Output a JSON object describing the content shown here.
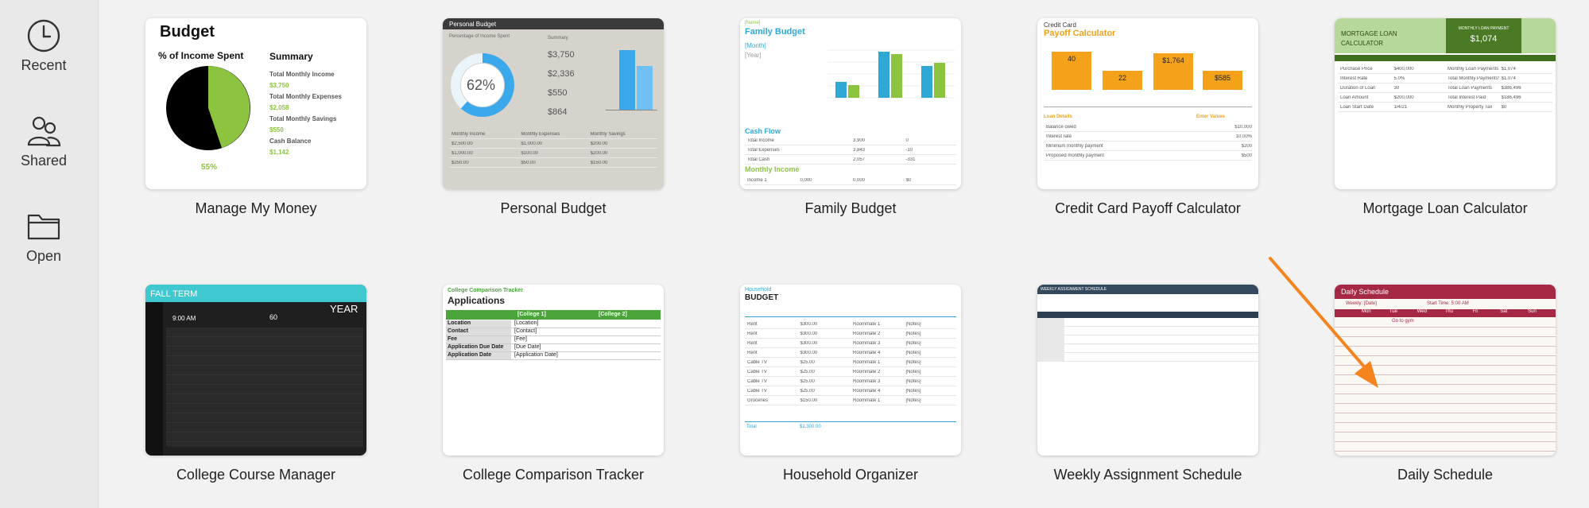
{
  "sidebar": {
    "items": [
      {
        "label": "Recent",
        "icon": "clock-icon"
      },
      {
        "label": "Shared",
        "icon": "people-icon"
      },
      {
        "label": "Open",
        "icon": "folder-icon"
      }
    ]
  },
  "templates": [
    {
      "label": "Manage My Money"
    },
    {
      "label": "Personal Budget"
    },
    {
      "label": "Family Budget"
    },
    {
      "label": "Credit Card Payoff Calculator"
    },
    {
      "label": "Mortgage Loan Calculator"
    },
    {
      "label": "College Course Manager"
    },
    {
      "label": "College Comparison Tracker"
    },
    {
      "label": "Household Organizer"
    },
    {
      "label": "Weekly Assignment Schedule"
    },
    {
      "label": "Daily Schedule"
    }
  ],
  "thumbs": {
    "mmm": {
      "title": "Budget",
      "pie_title": "% of Income Spent",
      "pct": "55%",
      "summary": "Summary",
      "rows": [
        [
          "Total Monthly Income",
          "$3,750"
        ],
        [
          "Total Monthly Expenses",
          "$2,058"
        ],
        [
          "Total Monthly Savings",
          "$550"
        ],
        [
          "Cash Balance",
          "$1,142"
        ]
      ]
    },
    "pb": {
      "title": "Personal Budget",
      "pct": "62%",
      "sub": "Percentage of Income Spent",
      "summary": "Summary",
      "amounts": [
        "$3,750",
        "$2,336",
        "$550",
        "$864"
      ]
    },
    "fb": {
      "name": "[Name]",
      "title": "Family Budget",
      "month": "[Month]",
      "year": "[Year]",
      "cashflow": "Cash Flow",
      "income": "Monthly Income"
    },
    "cc": {
      "kicker": "Credit Card",
      "title": "Payoff Calculator",
      "bars": [
        "40",
        "22",
        "$1,764",
        "$585"
      ],
      "loan": "Loan Details",
      "enter": "Enter Values"
    },
    "ml": {
      "title": "MORTGAGE LOAN CALCULATOR",
      "payment_label": "MONTHLY LOAN PAYMENT",
      "payment": "$1,074"
    },
    "ccm": {
      "term": "FALL TERM",
      "year": "YEAR",
      "time": "9:00 AM",
      "interval": "60"
    },
    "cct": {
      "kicker": "College Comparison Tracker",
      "title": "Applications",
      "c1": "[College 1]",
      "c2": "[College 2]",
      "rows": [
        "Location",
        "Contact",
        "Fee",
        "Application Due Date",
        "Application Date"
      ],
      "vals": [
        "[Location]",
        "[Contact]",
        "[Fee]",
        "[Due Date]",
        "[Application Date]"
      ]
    },
    "ho": {
      "kicker": "Household",
      "title": "BUDGET",
      "total": "Total",
      "total_amt": "$1,300.00"
    },
    "was": {
      "title": "WEEKLY ASSIGNMENT SCHEDULE"
    },
    "ds": {
      "title": "Daily Schedule",
      "weekly": "Weekly: [Date]",
      "start": "Start Time: 5:00 AM",
      "days": [
        "Mon",
        "Tue",
        "Wed",
        "Thu",
        "Fri",
        "Sat",
        "Sun"
      ],
      "entry": "Go to gym"
    }
  },
  "colors": {
    "accent_orange": "#f5841f",
    "excel_green": "#4aa43a",
    "sidebar_bg": "#e9e9e9",
    "page_bg": "#f2f2f2"
  }
}
